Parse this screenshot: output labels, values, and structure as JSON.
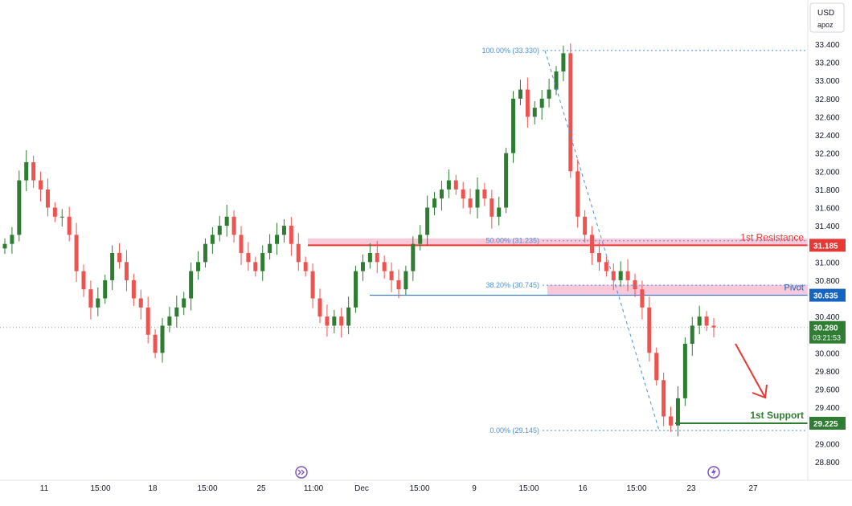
{
  "currency": "USD",
  "price_mode": "apoz",
  "colors": {
    "up": "#26a69a",
    "up_body": "#2e7d32",
    "down": "#ef5350",
    "resistance": "#e53935",
    "pivot": "#1565c0",
    "support": "#2e7d32",
    "zone": "#f8bbd0",
    "fib": "#4a90d9",
    "arrow": "#e53935"
  },
  "chart_data": {
    "type": "candlestick",
    "ylim": [
      28.8,
      33.5
    ],
    "y_ticks": [
      "33.400",
      "33.200",
      "33.000",
      "32.800",
      "32.600",
      "32.400",
      "32.200",
      "32.000",
      "31.800",
      "31.600",
      "31.400",
      "31.200",
      "31.000",
      "30.800",
      "30.600",
      "30.400",
      "30.200",
      "30.000",
      "29.800",
      "29.600",
      "29.400",
      "29.200",
      "29.000",
      "28.800"
    ],
    "x_ticks": [
      "11",
      "15:00",
      "18",
      "15:00",
      "25",
      "11:00",
      "Dec",
      "15:00",
      "9",
      "15:00",
      "16",
      "15:00",
      "23",
      "27"
    ],
    "closes": [
      31.2,
      31.3,
      31.9,
      32.1,
      31.9,
      31.8,
      31.6,
      31.5,
      31.5,
      31.3,
      30.9,
      30.7,
      30.5,
      30.6,
      30.8,
      31.1,
      31.0,
      30.8,
      30.6,
      30.5,
      30.2,
      30.0,
      30.3,
      30.4,
      30.5,
      30.6,
      30.9,
      31.0,
      31.2,
      31.3,
      31.4,
      31.5,
      31.3,
      31.1,
      31.0,
      30.9,
      31.1,
      31.2,
      31.3,
      31.4,
      31.2,
      31.0,
      30.9,
      30.6,
      30.4,
      30.3,
      30.4,
      30.3,
      30.5,
      30.9,
      31.0,
      31.1,
      31.0,
      30.9,
      30.8,
      30.7,
      30.9,
      31.2,
      31.3,
      31.6,
      31.7,
      31.8,
      31.9,
      31.8,
      31.7,
      31.6,
      31.8,
      31.7,
      31.5,
      31.6,
      32.2,
      32.8,
      32.9,
      32.6,
      32.7,
      32.8,
      32.9,
      33.1,
      33.3,
      32.0,
      31.5,
      31.3,
      31.1,
      31.0,
      30.9,
      30.8,
      30.9,
      30.8,
      30.7,
      30.5,
      30.0,
      29.7,
      29.3,
      29.2,
      29.5,
      30.1,
      30.3,
      30.4,
      30.3,
      30.28
    ],
    "levels": [
      {
        "label": "1st Resistance",
        "value": "31.185"
      },
      {
        "label": "Pivot",
        "value": "30.635"
      },
      {
        "label": "1st Support",
        "value": "29.225"
      }
    ],
    "current_price": "30.280",
    "countdown": "03:21:53",
    "fib_levels": [
      {
        "label": "100.00% (33.330)",
        "value": 33.33
      },
      {
        "label": "50.00% (31.235)",
        "value": 31.235
      },
      {
        "label": "38.20% (30.745)",
        "value": 30.745
      },
      {
        "label": "0.00% (29.145)",
        "value": 29.145
      }
    ],
    "grid": false
  }
}
